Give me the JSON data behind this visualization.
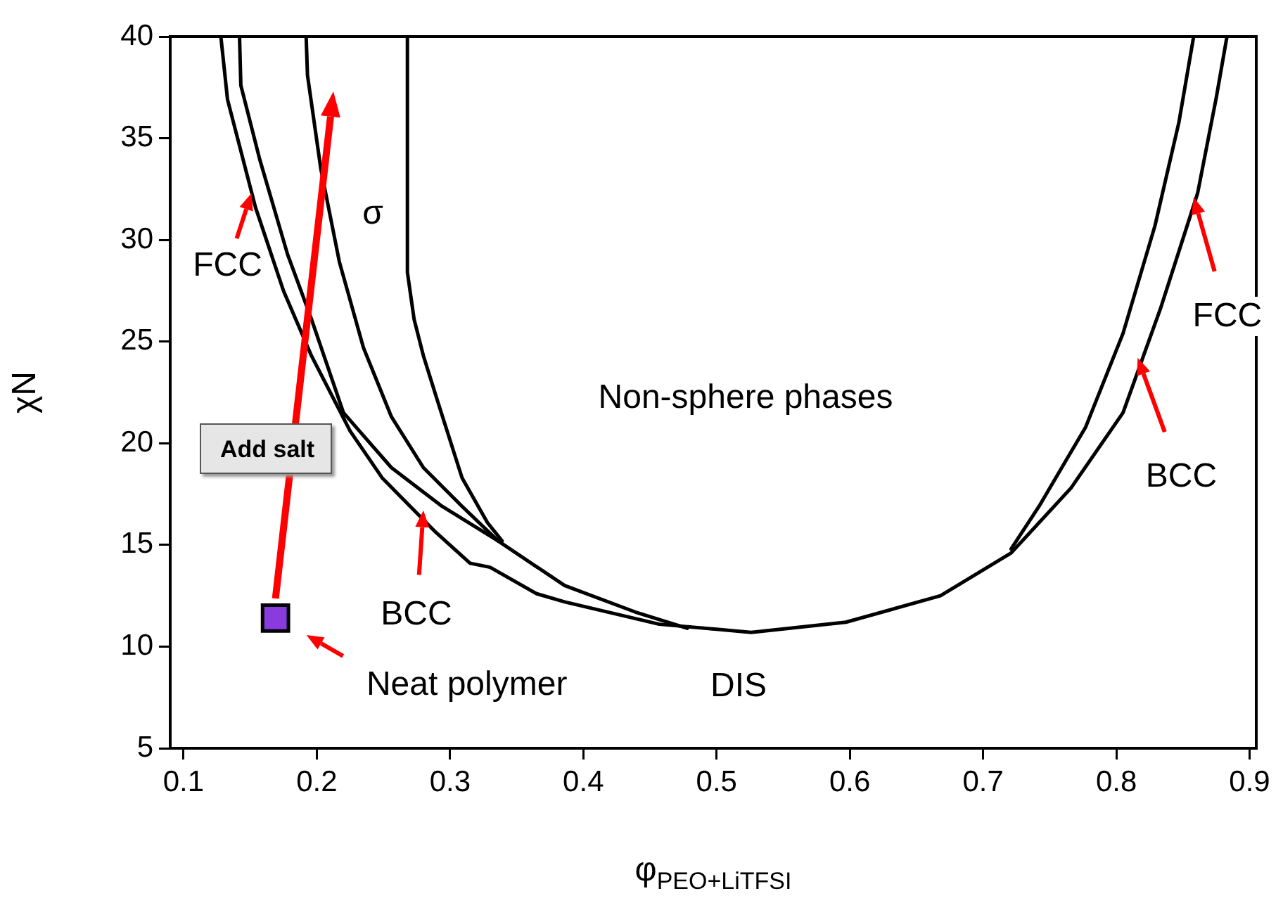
{
  "chart_data": {
    "type": "line",
    "xlabel": "φ$_{PEO+LiTFSI}$",
    "ylabel": "χN",
    "xlim": [
      0.09,
      0.905
    ],
    "ylim": [
      5,
      40
    ],
    "xticks": [
      0.1,
      0.2,
      0.3,
      0.4,
      0.5,
      0.6,
      0.7,
      0.8,
      0.9
    ],
    "yticks": [
      5,
      10,
      15,
      20,
      25,
      30,
      35,
      40
    ],
    "grid": false,
    "series": [
      {
        "color": "#000000",
        "x": [
          0.128,
          0.133,
          0.154,
          0.175,
          0.196,
          0.225,
          0.249,
          0.288,
          0.315,
          0.33,
          0.365,
          0.386,
          0.457,
          0.526,
          0.597,
          0.668,
          0.721,
          0.766,
          0.805,
          0.833,
          0.861,
          0.875,
          0.883
        ],
        "values": [
          40,
          36.9,
          31.6,
          27.5,
          24.3,
          20.6,
          18.3,
          15.7,
          14.1,
          13.9,
          12.6,
          12.2,
          11.1,
          10.7,
          11.2,
          12.5,
          14.6,
          17.8,
          21.5,
          26.6,
          32.3,
          37.0,
          40
        ]
      },
      {
        "color": "#000000",
        "x": [
          0.142,
          0.143,
          0.157,
          0.178,
          0.196,
          0.22,
          0.256,
          0.294,
          0.336,
          0.386,
          0.439,
          0.478
        ],
        "values": [
          40,
          37.6,
          34.0,
          29.3,
          26.1,
          21.5,
          18.8,
          16.9,
          15.2,
          13.0,
          11.7,
          10.9
        ]
      },
      {
        "color": "#000000",
        "x": [
          0.192,
          0.193,
          0.203,
          0.217,
          0.235,
          0.256,
          0.28,
          0.309,
          0.336
        ],
        "values": [
          40,
          38.1,
          33.5,
          28.9,
          24.7,
          21.3,
          18.8,
          16.9,
          15.2
        ]
      },
      {
        "color": "#000000",
        "x": [
          0.268,
          0.268,
          0.273,
          0.28,
          0.291,
          0.309,
          0.328,
          0.339
        ],
        "values": [
          40,
          28.4,
          26.1,
          24.3,
          22.0,
          18.3,
          16.1,
          15.2
        ]
      },
      {
        "color": "#000000",
        "x": [
          0.858,
          0.847,
          0.829,
          0.805,
          0.777,
          0.742,
          0.721
        ],
        "values": [
          40,
          35.8,
          30.7,
          25.4,
          20.8,
          16.9,
          14.8
        ]
      },
      {
        "type": "scatter",
        "name": "Neat polymer",
        "color": "#8a3be0",
        "marker": "square",
        "x": [
          0.169
        ],
        "values": [
          11.4
        ]
      }
    ],
    "annotations": [
      {
        "text": "FCC",
        "x": 0.151,
        "y": 32.3
      },
      {
        "text": "BCC",
        "x": 0.28,
        "y": 16.7
      },
      {
        "text": "FCC",
        "x": 0.858,
        "y": 32.1
      },
      {
        "text": "BCC",
        "x": 0.816,
        "y": 24.2
      },
      "σ",
      "Non-sphere phases",
      "DIS",
      "Add salt"
    ]
  }
}
